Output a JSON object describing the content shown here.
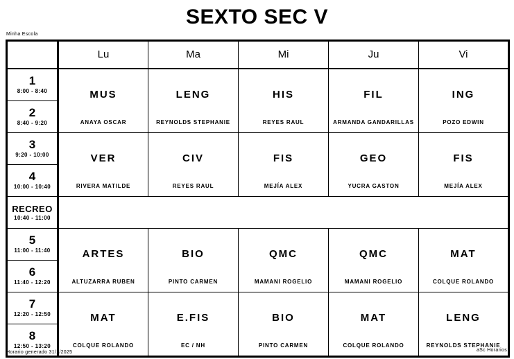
{
  "header": {
    "title": "SEXTO SEC V",
    "school_label": "Minha Escola"
  },
  "timetable": {
    "day_headers": [
      "Lu",
      "Ma",
      "Mi",
      "Ju",
      "Vi"
    ],
    "periods": [
      {
        "num": "1",
        "time": "8:00 - 8:40"
      },
      {
        "num": "2",
        "time": "8:40 - 9:20"
      },
      {
        "num": "3",
        "time": "9:20 - 10:00"
      },
      {
        "num": "4",
        "time": "10:00 - 10:40"
      },
      {
        "num": "5",
        "time": "11:00 - 11:40"
      },
      {
        "num": "6",
        "time": "11:40 - 12:20"
      },
      {
        "num": "7",
        "time": "12:20 - 12:50"
      },
      {
        "num": "8",
        "time": "12:50 - 13:20"
      }
    ],
    "recreo": {
      "label": "RECREO",
      "time": "10:40 - 11:00"
    },
    "blocks": [
      {
        "cells": [
          {
            "subject": "MUS",
            "teacher": "ANAYA OSCAR"
          },
          {
            "subject": "LENG",
            "teacher": "REYNOLDS STEPHANIE"
          },
          {
            "subject": "HIS",
            "teacher": "REYES RAUL"
          },
          {
            "subject": "FIL",
            "teacher": "ARMANDA GANDARILLAS"
          },
          {
            "subject": "ING",
            "teacher": "POZO EDWIN"
          }
        ]
      },
      {
        "cells": [
          {
            "subject": "VER",
            "teacher": "RIVERA MATILDE"
          },
          {
            "subject": "CIV",
            "teacher": "REYES RAUL"
          },
          {
            "subject": "FIS",
            "teacher": "MEJÍA ALEX"
          },
          {
            "subject": "GEO",
            "teacher": "YUCRA GASTON"
          },
          {
            "subject": "FIS",
            "teacher": "MEJÍA ALEX"
          }
        ]
      },
      {
        "cells": [
          {
            "subject": "ARTES",
            "teacher": "ALTUZARRA RUBEN"
          },
          {
            "subject": "BIO",
            "teacher": "PINTO CARMEN"
          },
          {
            "subject": "QMC",
            "teacher": "MAMANI ROGELIO"
          },
          {
            "subject": "QMC",
            "teacher": "MAMANI ROGELIO"
          },
          {
            "subject": "MAT",
            "teacher": "COLQUE ROLANDO"
          }
        ]
      },
      {
        "cells": [
          {
            "subject": "MAT",
            "teacher": "COLQUE ROLANDO"
          },
          {
            "subject": "E.FIS",
            "teacher": "EC / NH"
          },
          {
            "subject": "BIO",
            "teacher": "PINTO CARMEN"
          },
          {
            "subject": "MAT",
            "teacher": "COLQUE ROLANDO"
          },
          {
            "subject": "LENG",
            "teacher": "REYNOLDS STEPHANIE"
          }
        ]
      }
    ]
  },
  "footer": {
    "left": "Horario generado 31/1/2025",
    "right": "aSc Horarios"
  },
  "colors": {
    "background": "#ffffff",
    "border": "#000000",
    "text": "#000000"
  }
}
